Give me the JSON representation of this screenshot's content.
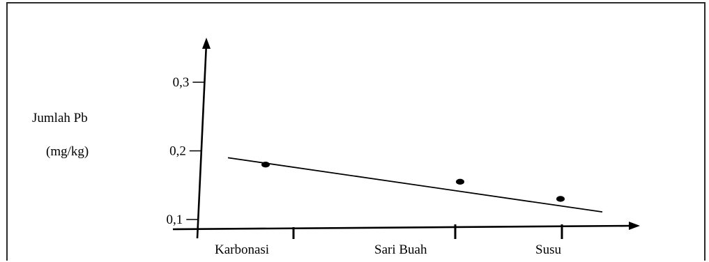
{
  "chart_data": {
    "type": "line",
    "ylabel_lines": [
      "Jumlah Pb",
      "(mg/kg)"
    ],
    "categories": [
      "Karbonasi",
      "Sari Buah",
      "Susu"
    ],
    "y_ticks": [
      {
        "value": 0.1,
        "label": "0,1"
      },
      {
        "value": 0.2,
        "label": "0,2"
      },
      {
        "value": 0.3,
        "label": "0,3"
      }
    ],
    "values": [
      0.18,
      0.155,
      0.13
    ],
    "trend_line": {
      "start": 0.19,
      "end": 0.111
    },
    "ylim": [
      0.1,
      0.3
    ],
    "grid": false
  }
}
